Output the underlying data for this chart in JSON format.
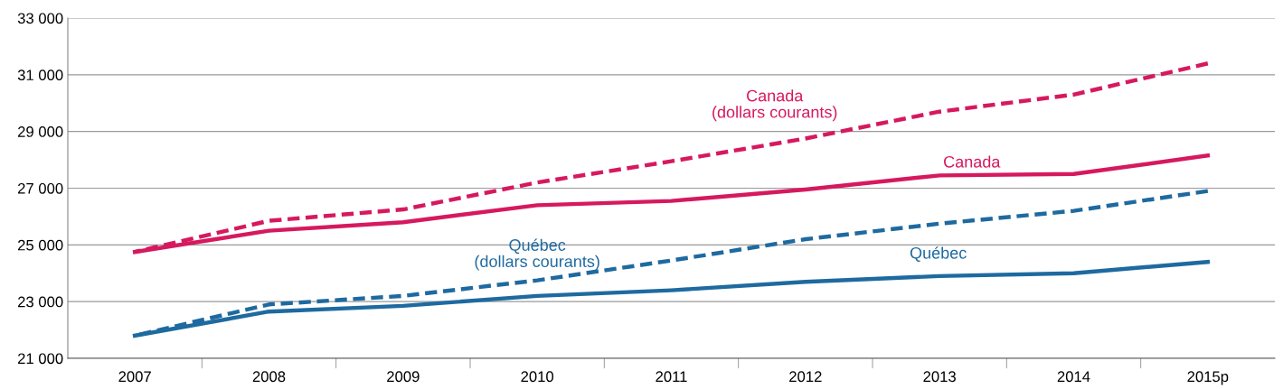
{
  "chart_data": {
    "type": "line",
    "categories": [
      "2007",
      "2008",
      "2009",
      "2010",
      "2011",
      "2012",
      "2013",
      "2014",
      "2015p"
    ],
    "series": [
      {
        "name": "Canada\n(dollars courants)",
        "color": "#d6195f",
        "line_style": "dashed",
        "values": [
          24750,
          25850,
          26250,
          27200,
          27950,
          28750,
          29700,
          30300,
          31400
        ]
      },
      {
        "name": "Canada",
        "color": "#d6195f",
        "line_style": "solid",
        "values": [
          24750,
          25500,
          25800,
          26400,
          26550,
          26950,
          27450,
          27500,
          28150
        ]
      },
      {
        "name": "Québec\n(dollars courants)",
        "color": "#1e6aa0",
        "line_style": "dashed",
        "values": [
          21800,
          22900,
          23200,
          23750,
          24450,
          25200,
          25750,
          26200,
          26900
        ]
      },
      {
        "name": "Québec",
        "color": "#1e6aa0",
        "line_style": "solid",
        "values": [
          21800,
          22650,
          22850,
          23200,
          23400,
          23700,
          23900,
          24000,
          24400
        ]
      }
    ],
    "ylim": [
      21000,
      33000
    ],
    "yticks": [
      {
        "value": 21000,
        "label": "21 000"
      },
      {
        "value": 23000,
        "label": "23 000"
      },
      {
        "value": 25000,
        "label": "25 000"
      },
      {
        "value": 27000,
        "label": "27 000"
      },
      {
        "value": 29000,
        "label": "29 000"
      },
      {
        "value": 31000,
        "label": "31 000"
      },
      {
        "value": 33000,
        "label": "33 000"
      }
    ],
    "grid": "y",
    "legend": false,
    "marker": "none"
  }
}
